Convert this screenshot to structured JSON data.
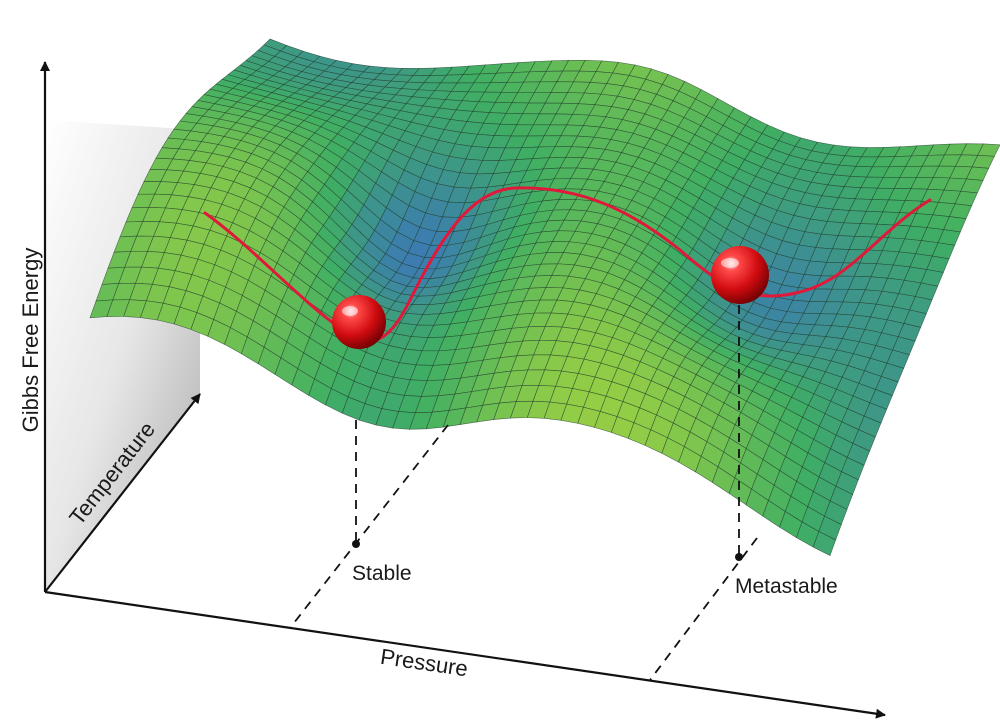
{
  "diagram": {
    "axes": {
      "vertical": "Gibbs Free Energy",
      "depth": "Temperature",
      "horizontal": "Pressure"
    },
    "states": [
      {
        "label": "Stable"
      },
      {
        "label": "Metastable"
      }
    ],
    "colors": {
      "surface_high": "#a6d43f",
      "surface_mid": "#3fae64",
      "surface_low": "#3a63d6",
      "mesh": "#1f3a2a",
      "path": "#e0193a",
      "ball": "#d40f14",
      "back_wall": "#b9b9b9",
      "axis": "#111111"
    }
  }
}
